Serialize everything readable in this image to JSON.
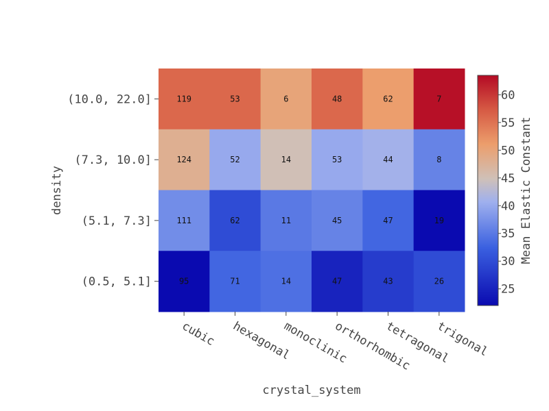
{
  "chart_data": {
    "type": "heatmap",
    "xlabel": "crystal_system",
    "ylabel": "density",
    "colorbar_label": "Mean Elastic Constant",
    "x_categories": [
      "cubic",
      "hexagonal",
      "monoclinic",
      "orthorhombic",
      "tetragonal",
      "trigonal"
    ],
    "y_categories": [
      "(10.0, 22.0]",
      "(7.3, 10.0]",
      "(5.1, 7.3]",
      "(0.5, 5.1]"
    ],
    "colorscale": "coolwarm",
    "color_range": [
      22,
      63.5
    ],
    "colorbar_ticks": [
      25,
      30,
      35,
      40,
      45,
      50,
      55,
      60
    ],
    "values": [
      [
        56,
        56,
        50,
        56,
        51,
        63
      ],
      [
        48,
        40,
        45,
        40,
        41,
        36
      ],
      [
        37,
        30,
        35,
        36,
        33,
        22
      ],
      [
        22,
        33,
        34,
        25,
        28,
        30
      ]
    ],
    "cell_labels": [
      [
        "119",
        "53",
        "6",
        "48",
        "62",
        "7"
      ],
      [
        "124",
        "52",
        "14",
        "53",
        "44",
        "8"
      ],
      [
        "111",
        "62",
        "11",
        "45",
        "47",
        "19"
      ],
      [
        "95",
        "71",
        "14",
        "47",
        "43",
        "26"
      ]
    ]
  }
}
